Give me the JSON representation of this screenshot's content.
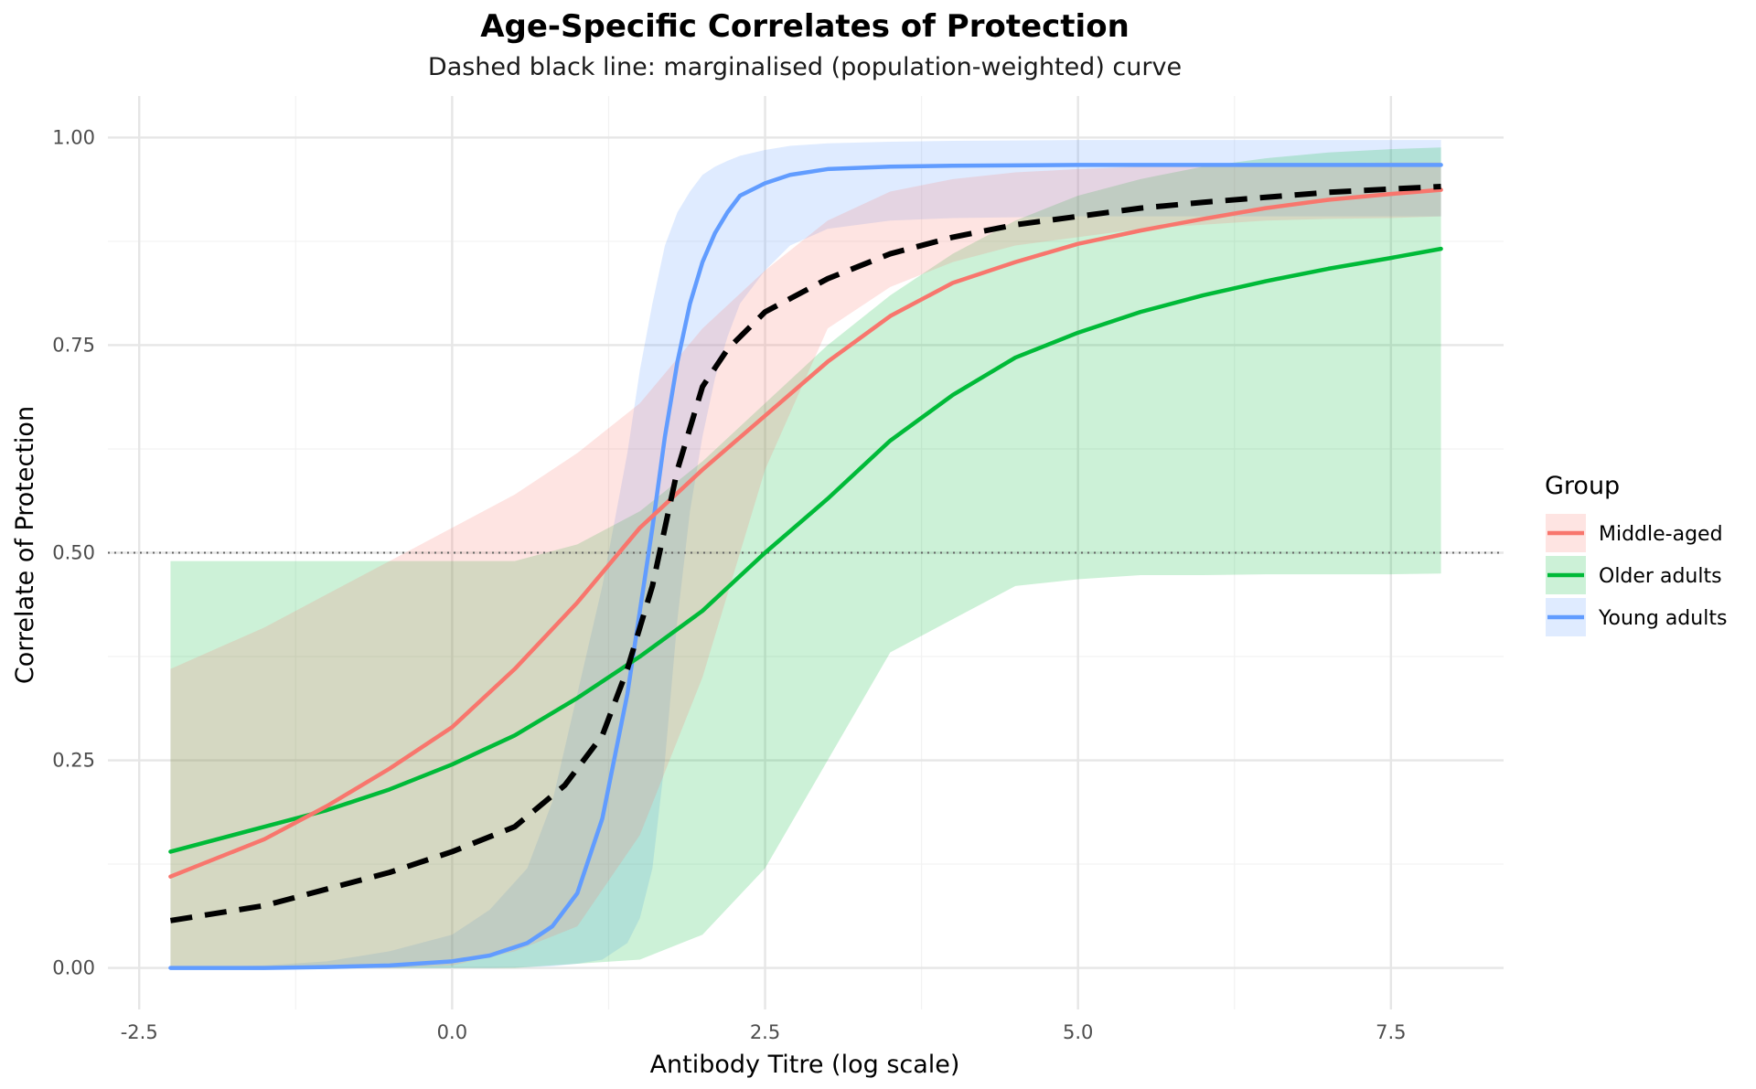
{
  "chart_data": {
    "type": "line",
    "title": "Age-Specific Correlates of Protection",
    "subtitle": "Dashed black line: marginalised (population-weighted) curve",
    "xlabel": "Antibody Titre (log scale)",
    "ylabel": "Correlate of Protection",
    "xlim": [
      -2.75,
      8.4
    ],
    "ylim": [
      -0.05,
      1.05
    ],
    "x_ticks": [
      -2.5,
      0.0,
      2.5,
      5.0,
      7.5
    ],
    "x_tick_labels": [
      "-2.5",
      "0.0",
      "2.5",
      "5.0",
      "7.5"
    ],
    "y_ticks": [
      0.0,
      0.25,
      0.5,
      0.75,
      1.0
    ],
    "y_tick_labels": [
      "0.00",
      "0.25",
      "0.50",
      "0.75",
      "1.00"
    ],
    "reference_line": {
      "y": 0.5,
      "style": "dotted"
    },
    "grid": true,
    "legend": {
      "title": "Group",
      "position": "right",
      "entries": [
        "Middle-aged",
        "Older adults",
        "Young adults"
      ]
    },
    "series": [
      {
        "name": "Young adults",
        "color": "#619CFF",
        "band_color": "#619CFF",
        "x": [
          -2.25,
          -1.5,
          -1.0,
          -0.5,
          0.0,
          0.3,
          0.6,
          0.8,
          1.0,
          1.2,
          1.4,
          1.5,
          1.6,
          1.7,
          1.8,
          1.9,
          2.0,
          2.1,
          2.2,
          2.3,
          2.5,
          2.7,
          3.0,
          3.5,
          4.0,
          5.0,
          6.0,
          7.0,
          7.9
        ],
        "y": [
          0.0,
          0.0,
          0.001,
          0.003,
          0.008,
          0.015,
          0.03,
          0.05,
          0.09,
          0.18,
          0.33,
          0.43,
          0.53,
          0.64,
          0.73,
          0.8,
          0.85,
          0.885,
          0.91,
          0.93,
          0.945,
          0.955,
          0.962,
          0.965,
          0.966,
          0.967,
          0.967,
          0.967,
          0.967
        ],
        "lower": [
          0.0,
          0.0,
          0.0,
          0.0,
          0.0,
          0.0,
          0.001,
          0.002,
          0.005,
          0.01,
          0.03,
          0.06,
          0.12,
          0.25,
          0.42,
          0.55,
          0.64,
          0.71,
          0.76,
          0.8,
          0.84,
          0.87,
          0.89,
          0.9,
          0.903,
          0.905,
          0.905,
          0.905,
          0.905
        ],
        "upper": [
          0.0,
          0.003,
          0.008,
          0.02,
          0.04,
          0.07,
          0.12,
          0.2,
          0.33,
          0.46,
          0.62,
          0.72,
          0.8,
          0.87,
          0.91,
          0.935,
          0.955,
          0.965,
          0.972,
          0.978,
          0.985,
          0.99,
          0.993,
          0.995,
          0.996,
          0.997,
          0.997,
          0.997,
          0.997
        ]
      },
      {
        "name": "Older adults",
        "color": "#00BA38",
        "band_color": "#00BA38",
        "x": [
          -2.25,
          -1.5,
          -1.0,
          -0.5,
          0.0,
          0.5,
          1.0,
          1.5,
          2.0,
          2.5,
          3.0,
          3.5,
          4.0,
          4.5,
          5.0,
          5.5,
          6.0,
          6.5,
          7.0,
          7.5,
          7.9
        ],
        "y": [
          0.14,
          0.17,
          0.19,
          0.215,
          0.245,
          0.28,
          0.325,
          0.375,
          0.43,
          0.5,
          0.565,
          0.635,
          0.69,
          0.735,
          0.765,
          0.79,
          0.81,
          0.827,
          0.842,
          0.855,
          0.866
        ],
        "lower": [
          0.0,
          0.0,
          0.0,
          0.0,
          0.0,
          0.0,
          0.005,
          0.01,
          0.04,
          0.12,
          0.25,
          0.38,
          0.42,
          0.46,
          0.468,
          0.473,
          0.473,
          0.474,
          0.474,
          0.474,
          0.475
        ],
        "upper": [
          0.49,
          0.49,
          0.49,
          0.49,
          0.49,
          0.49,
          0.51,
          0.55,
          0.61,
          0.68,
          0.75,
          0.81,
          0.86,
          0.9,
          0.93,
          0.95,
          0.965,
          0.975,
          0.982,
          0.986,
          0.988
        ]
      },
      {
        "name": "Middle-aged",
        "color": "#F8766D",
        "band_color": "#F8766D",
        "x": [
          -2.25,
          -1.5,
          -1.0,
          -0.5,
          0.0,
          0.5,
          1.0,
          1.5,
          2.0,
          2.5,
          3.0,
          3.5,
          4.0,
          4.5,
          5.0,
          5.5,
          6.0,
          6.5,
          7.0,
          7.5,
          7.9
        ],
        "y": [
          0.11,
          0.155,
          0.195,
          0.24,
          0.29,
          0.36,
          0.44,
          0.53,
          0.6,
          0.665,
          0.73,
          0.785,
          0.825,
          0.85,
          0.872,
          0.888,
          0.902,
          0.915,
          0.925,
          0.932,
          0.937
        ],
        "lower": [
          0.0,
          0.0,
          0.0,
          0.0,
          0.003,
          0.02,
          0.05,
          0.16,
          0.35,
          0.6,
          0.77,
          0.82,
          0.85,
          0.87,
          0.88,
          0.89,
          0.895,
          0.9,
          0.902,
          0.903,
          0.905
        ],
        "upper": [
          0.36,
          0.41,
          0.45,
          0.49,
          0.53,
          0.57,
          0.62,
          0.68,
          0.77,
          0.84,
          0.9,
          0.935,
          0.95,
          0.958,
          0.962,
          0.965,
          0.967,
          0.968,
          0.969,
          0.97,
          0.97
        ]
      },
      {
        "name": "Marginalised (population-weighted)",
        "color": "#000000",
        "dashed": true,
        "x": [
          -2.25,
          -1.5,
          -1.0,
          -0.5,
          0.0,
          0.5,
          0.9,
          1.2,
          1.4,
          1.6,
          1.8,
          2.0,
          2.2,
          2.5,
          3.0,
          3.5,
          4.0,
          4.5,
          5.0,
          5.5,
          6.0,
          6.5,
          7.0,
          7.5,
          7.9
        ],
        "y": [
          0.057,
          0.075,
          0.095,
          0.115,
          0.14,
          0.17,
          0.22,
          0.28,
          0.36,
          0.46,
          0.6,
          0.7,
          0.745,
          0.79,
          0.83,
          0.86,
          0.88,
          0.895,
          0.905,
          0.915,
          0.922,
          0.928,
          0.934,
          0.938,
          0.941
        ]
      }
    ]
  }
}
